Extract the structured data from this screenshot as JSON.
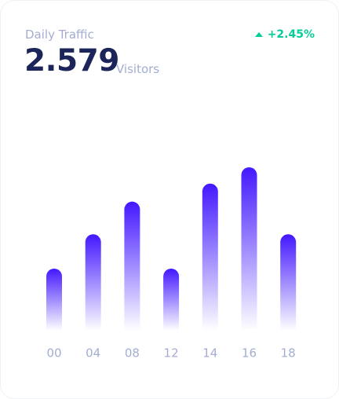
{
  "header": {
    "title": "Daily Traffic",
    "value": "2.579",
    "unit": "Visitors",
    "change": "+2.45%"
  },
  "chart_data": {
    "type": "bar",
    "categories": [
      "00",
      "04",
      "08",
      "12",
      "14",
      "16",
      "18"
    ],
    "values": [
      38,
      59,
      79,
      38,
      90,
      100,
      59
    ],
    "color": "#4318ff",
    "ylim": [
      0,
      100
    ]
  }
}
